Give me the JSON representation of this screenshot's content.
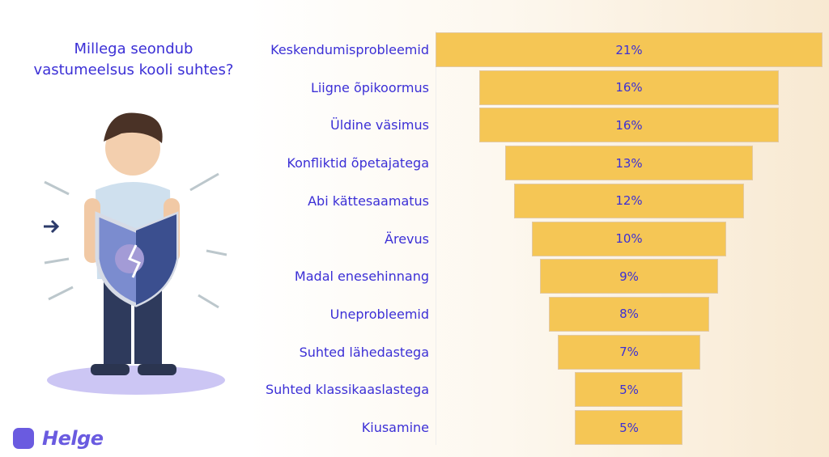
{
  "title": "Millega seondub vastumeelsus kooli suhtes?",
  "brand": "Helge",
  "colors": {
    "bar": "#f5c655",
    "text": "#3b2fd6",
    "brand": "#6a5be0"
  },
  "chart_data": {
    "type": "bar",
    "orientation": "funnel",
    "title": "Millega seondub vastumeelsus kooli suhtes?",
    "categories": [
      "Keskendumisprobleemid",
      "Liigne õpikoormus",
      "Üldine väsimus",
      "Konfliktid õpetajatega",
      "Abi kättesaamatus",
      "Ärevus",
      "Madal enesehinnang",
      "Uneprobleemid",
      "Suhted lähedastega",
      "Suhted klassikaaslastega",
      "Kiusamine"
    ],
    "values": [
      21,
      16,
      16,
      13,
      12,
      10,
      9,
      8,
      7,
      5,
      5
    ],
    "value_labels": [
      "21%",
      "16%",
      "16%",
      "13%",
      "12%",
      "10%",
      "9%",
      "8%",
      "7%",
      "5%",
      "5%"
    ],
    "unit": "%",
    "grid": false
  }
}
